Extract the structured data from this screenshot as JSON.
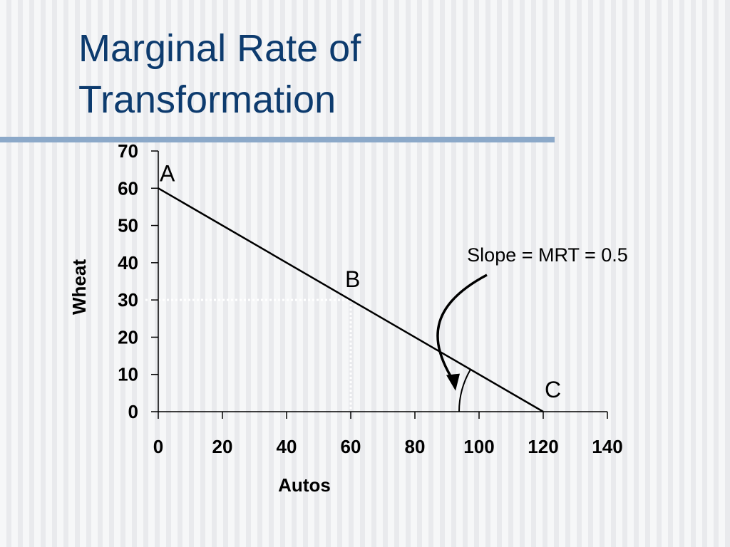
{
  "slide": {
    "title_line1": "Marginal Rate of",
    "title_line2": "Transformation"
  },
  "colors": {
    "title": "#0d3b6e",
    "rule": "#8ca9c9",
    "line": "#000000",
    "guide": "#ffffff"
  },
  "chart_data": {
    "type": "line",
    "xlabel": "Autos",
    "ylabel": "Wheat",
    "xlim": [
      0,
      140
    ],
    "ylim": [
      0,
      70
    ],
    "x_ticks": [
      0,
      20,
      40,
      60,
      80,
      100,
      120,
      140
    ],
    "y_ticks": [
      0,
      10,
      20,
      30,
      40,
      50,
      60,
      70
    ],
    "x_tick_labels": [
      "0",
      "20",
      "40",
      "60",
      "80",
      "100",
      "120",
      "140"
    ],
    "y_tick_labels": [
      "0",
      "10",
      "20",
      "30",
      "40",
      "50",
      "60",
      "70"
    ],
    "grid": false,
    "legend": "none",
    "series": [
      {
        "x": [
          0,
          120
        ],
        "y": [
          60,
          0
        ]
      }
    ],
    "points": [
      {
        "label": "A",
        "x": 0,
        "y": 60
      },
      {
        "label": "B",
        "x": 60,
        "y": 30
      },
      {
        "label": "C",
        "x": 120,
        "y": 0
      }
    ],
    "guide_point": {
      "x": 60,
      "y": 30
    },
    "annotation": {
      "text": "Slope = MRT = 0.5",
      "arrow_tip": {
        "x": 92,
        "y": 6
      },
      "angle_vertex": {
        "x": 120,
        "y": 0
      }
    }
  }
}
